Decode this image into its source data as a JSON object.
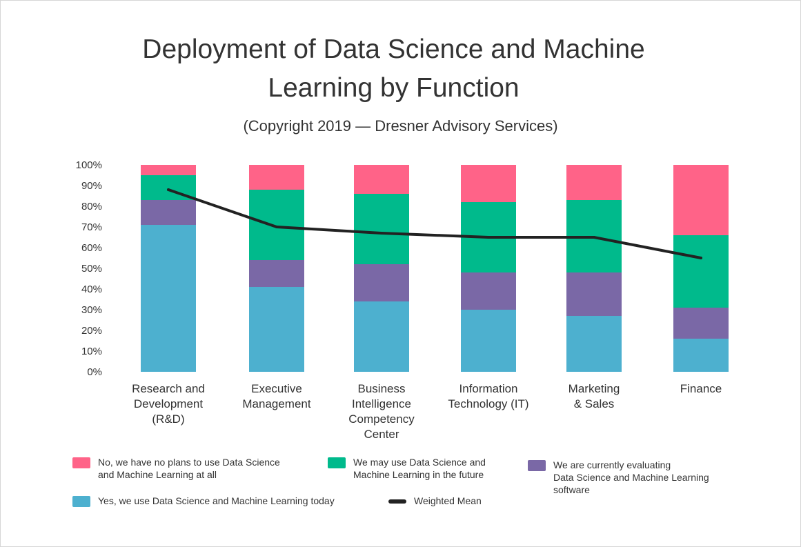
{
  "title": "Deployment of Data Science and Machine\nLearning by Function",
  "subtitle": "(Copyright 2019 — Dresner Advisory Services)",
  "colors": {
    "no_plans": "#ff6388",
    "future": "#00ba8c",
    "evaluating": "#7a68a6",
    "today": "#4db0cf",
    "mean": "#222222"
  },
  "chart_data": {
    "type": "bar",
    "stacked": true,
    "categories": [
      "Research and\nDevelopment\n(R&D)",
      "Executive\nManagement",
      "Business\nIntelligence\nCompetency\nCenter",
      "Information\nTechnology (IT)",
      "Marketing\n& Sales",
      "Finance"
    ],
    "series": [
      {
        "name": "Yes, we use Data Science and Machine Learning today",
        "values": [
          71,
          41,
          34,
          30,
          27,
          16
        ]
      },
      {
        "name": "We are currently evaluating\nData Science and Machine Learning\nsoftware",
        "values": [
          12,
          13,
          18,
          18,
          21,
          15
        ]
      },
      {
        "name": "We may use Data Science and\nMachine Learning in the future",
        "values": [
          12,
          34,
          34,
          34,
          35,
          35
        ]
      },
      {
        "name": "No, we have no plans to use Data Science\nand Machine Learning at all",
        "values": [
          5,
          12,
          14,
          18,
          17,
          34
        ]
      }
    ],
    "line": {
      "name": "Weighted Mean",
      "values": [
        88,
        70,
        67,
        65,
        65,
        55
      ]
    },
    "yticks": [
      "0%",
      "10%",
      "20%",
      "30%",
      "40%",
      "50%",
      "60%",
      "70%",
      "80%",
      "90%",
      "100%"
    ],
    "ylim": [
      0,
      100
    ],
    "xlabel": "",
    "ylabel": "",
    "grid": false,
    "legend": "bottom"
  }
}
